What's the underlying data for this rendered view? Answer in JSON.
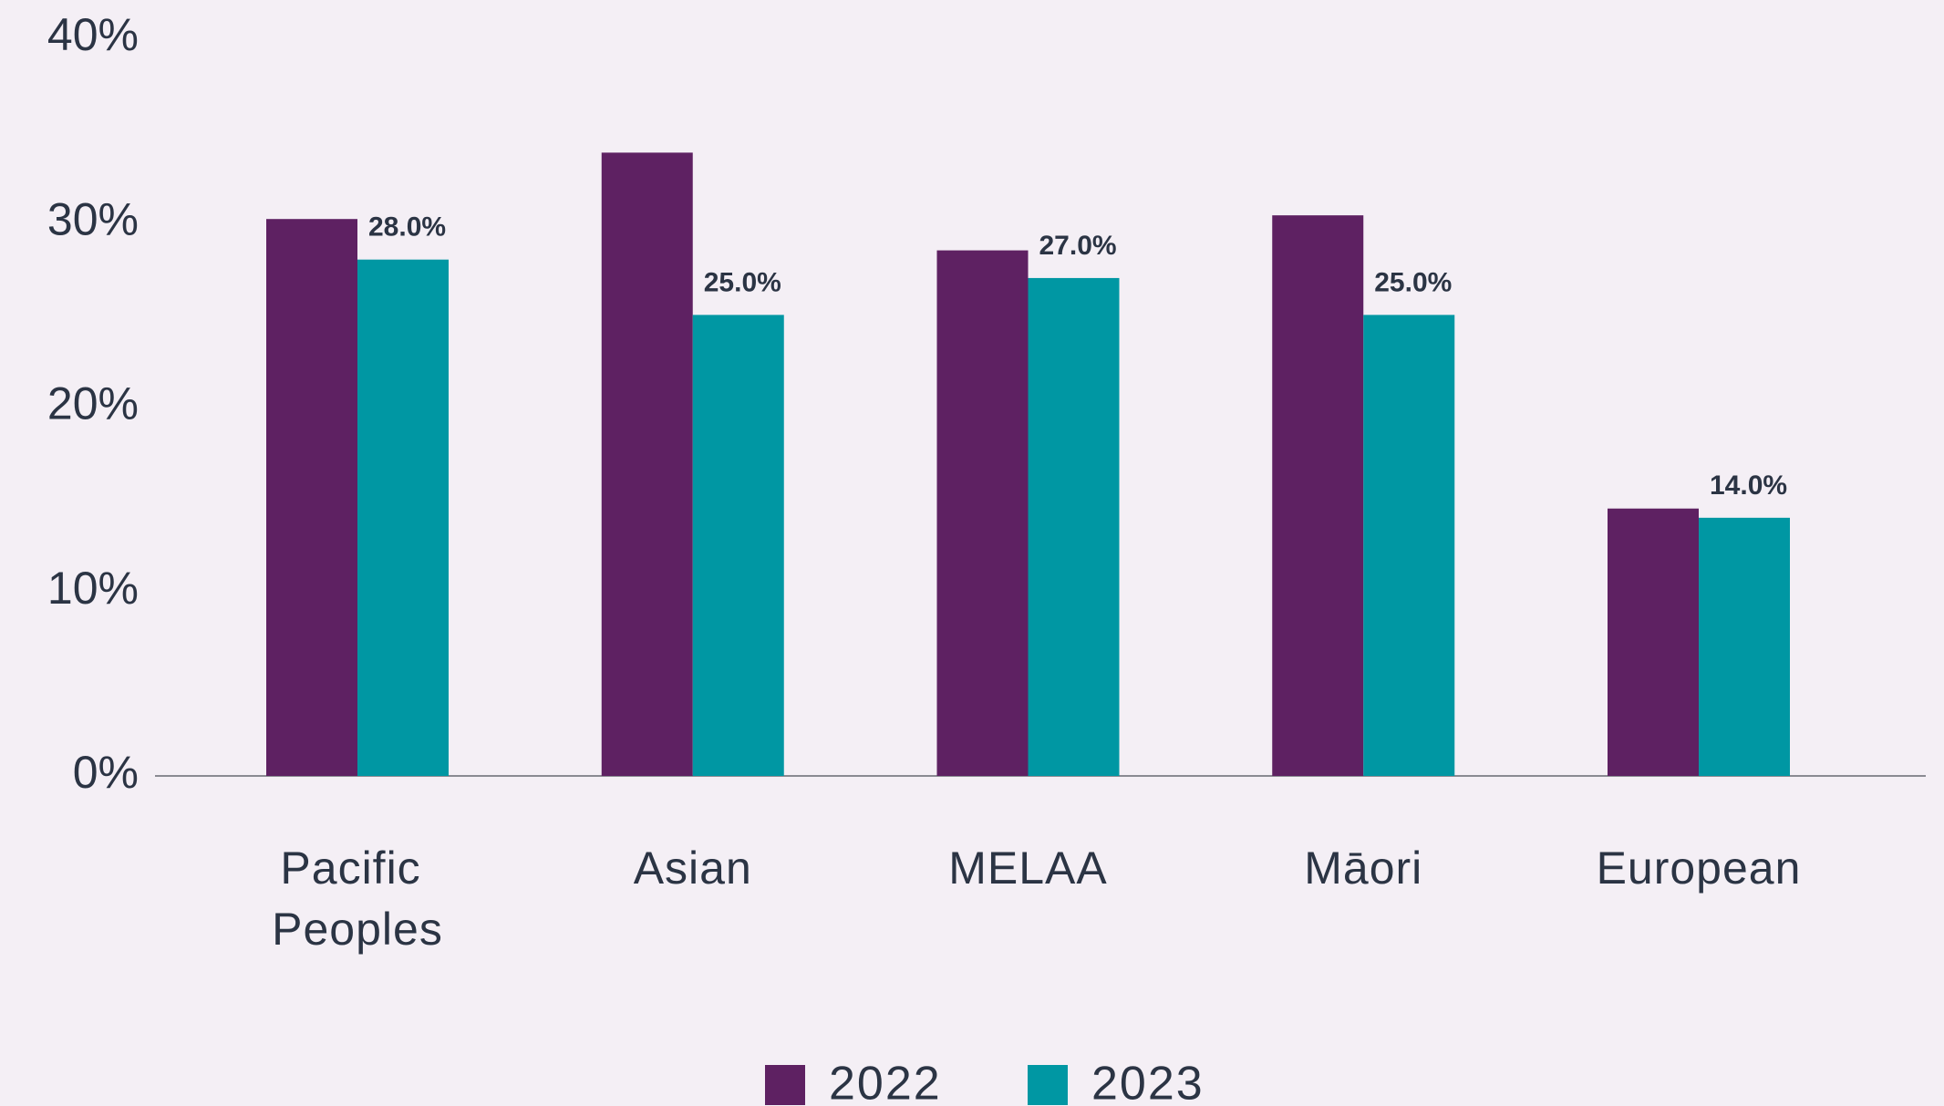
{
  "chart_data": {
    "type": "bar",
    "categories": [
      "Pacific Peoples",
      "Asian",
      "MELAA",
      "Māori",
      "European"
    ],
    "series": [
      {
        "name": "2022",
        "color": "#5e2162",
        "values": [
          30.2,
          33.8,
          28.5,
          30.4,
          14.5
        ]
      },
      {
        "name": "2023",
        "color": "#0097a3",
        "values": [
          28,
          25,
          27,
          25,
          14
        ],
        "value_labels": [
          "28.0%",
          "25.0%",
          "27.0%",
          "25.0%",
          "14.0%"
        ]
      }
    ],
    "ylim": [
      0,
      40
    ],
    "yticks": [
      {
        "value": 0,
        "label": "0%"
      },
      {
        "value": 10,
        "label": "10%"
      },
      {
        "value": 20,
        "label": "20%"
      },
      {
        "value": 30,
        "label": "30%"
      },
      {
        "value": 40,
        "label": "40%"
      }
    ],
    "legend": "bottom"
  }
}
